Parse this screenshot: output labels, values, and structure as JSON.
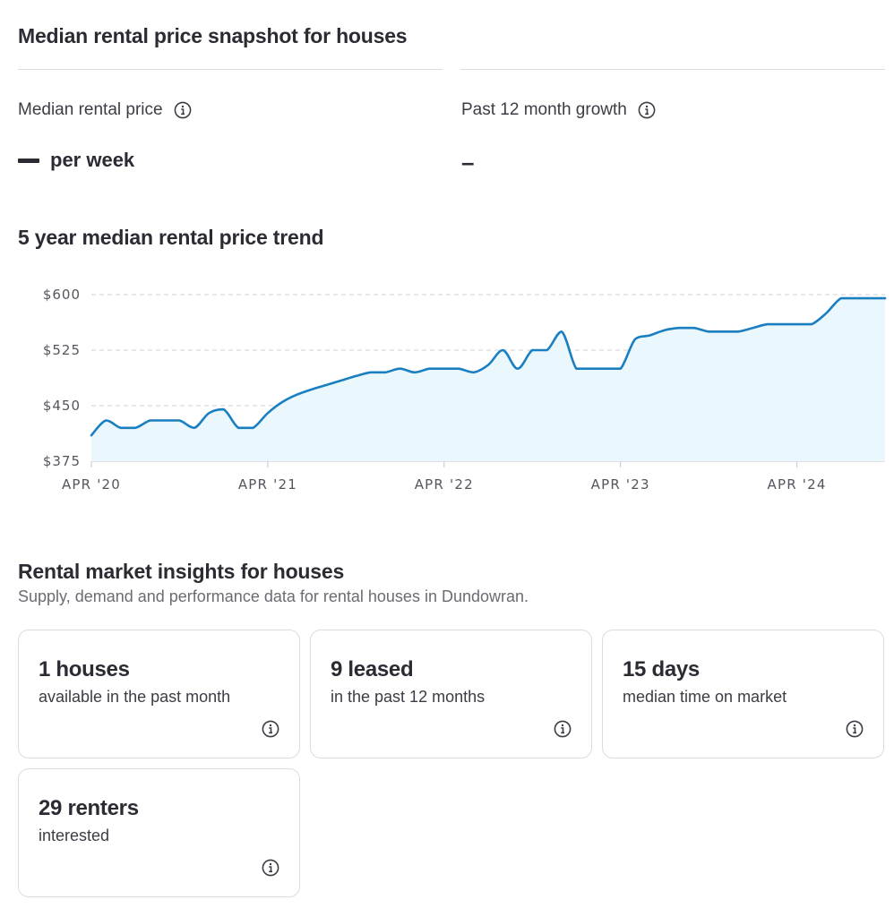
{
  "snapshot": {
    "title": "Median rental price snapshot for houses",
    "median_label": "Median rental price",
    "median_value": "per week",
    "growth_label": "Past 12 month growth",
    "growth_value": "–"
  },
  "trend": {
    "title": "5 year median rental price trend"
  },
  "chart_data": {
    "type": "area",
    "title": "5 year median rental price trend",
    "xlabel": "",
    "ylabel": "",
    "x_range": [
      "2020-04",
      "2024-10"
    ],
    "ylim": [
      375,
      600
    ],
    "y_ticks": [
      {
        "value": 600,
        "label": "$600"
      },
      {
        "value": 525,
        "label": "$525"
      },
      {
        "value": 450,
        "label": "$450"
      },
      {
        "value": 375,
        "label": "$375"
      }
    ],
    "x_ticks": [
      {
        "date": "2020-04",
        "label": "APR '20"
      },
      {
        "date": "2021-04",
        "label": "APR '21"
      },
      {
        "date": "2022-04",
        "label": "APR '22"
      },
      {
        "date": "2023-04",
        "label": "APR '23"
      },
      {
        "date": "2024-04",
        "label": "APR '24"
      }
    ],
    "grid": true,
    "line_color": "#1a7fc1",
    "fill_color": "#eaf7fc",
    "x": [
      "2020-04",
      "2020-05",
      "2020-06",
      "2020-07",
      "2020-08",
      "2020-09",
      "2020-10",
      "2020-11",
      "2020-12",
      "2021-01",
      "2021-02",
      "2021-03",
      "2021-04",
      "2021-05",
      "2021-06",
      "2021-07",
      "2021-08",
      "2021-09",
      "2021-10",
      "2021-11",
      "2021-12",
      "2022-01",
      "2022-02",
      "2022-03",
      "2022-04",
      "2022-05",
      "2022-06",
      "2022-07",
      "2022-08",
      "2022-09",
      "2022-10",
      "2022-11",
      "2022-12",
      "2023-01",
      "2023-02",
      "2023-03",
      "2023-04",
      "2023-05",
      "2023-06",
      "2023-07",
      "2023-08",
      "2023-09",
      "2023-10",
      "2023-11",
      "2023-12",
      "2024-01",
      "2024-02",
      "2024-03",
      "2024-04",
      "2024-05",
      "2024-06",
      "2024-07",
      "2024-08",
      "2024-09",
      "2024-10"
    ],
    "values": [
      410,
      430,
      420,
      420,
      430,
      430,
      430,
      420,
      440,
      445,
      420,
      420,
      440,
      455,
      465,
      472,
      478,
      484,
      490,
      495,
      495,
      500,
      495,
      500,
      500,
      500,
      495,
      505,
      525,
      500,
      525,
      525,
      550,
      500,
      500,
      500,
      500,
      540,
      545,
      552,
      555,
      555,
      550,
      550,
      550,
      555,
      560,
      560,
      560,
      560,
      575,
      595,
      595,
      595,
      595
    ]
  },
  "insights": {
    "title": "Rental market insights for houses",
    "subtitle": "Supply, demand and performance data for rental houses in Dundowran.",
    "cards": [
      {
        "value": "1 houses",
        "desc": "available in the past month"
      },
      {
        "value": "9 leased",
        "desc": "in the past 12 months"
      },
      {
        "value": "15 days",
        "desc": "median time on market"
      },
      {
        "value": "29 renters",
        "desc": "interested"
      }
    ]
  }
}
